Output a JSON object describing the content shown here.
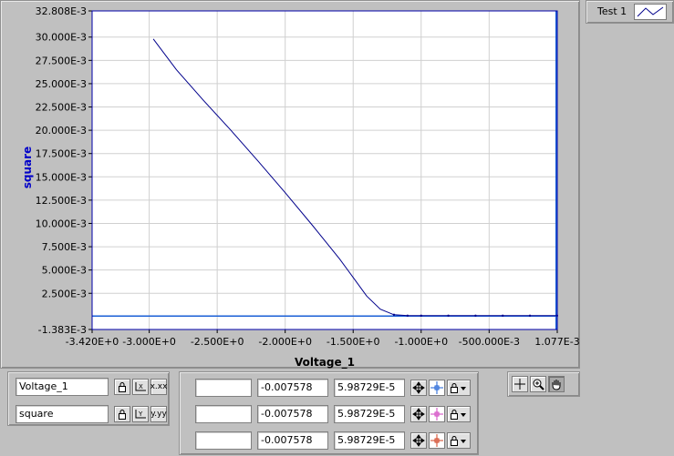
{
  "legend": {
    "label": "Test 1"
  },
  "scales": [
    {
      "name": "Voltage_1",
      "format_label": "x.xx"
    },
    {
      "name": "square",
      "format_label": "y.yy"
    }
  ],
  "cursors": [
    {
      "name": "",
      "x": "-0.007578",
      "y": "5.98729E-5",
      "color": "#1a5fd6"
    },
    {
      "name": "",
      "x": "-0.007578",
      "y": "5.98729E-5",
      "color": "#d040c0"
    },
    {
      "name": "",
      "x": "-0.007578",
      "y": "5.98729E-5",
      "color": "#d04020"
    }
  ],
  "icons": {
    "lock": "lock-icon",
    "autoscale_x": "autoscale-x-icon",
    "autoscale_y": "autoscale-y-icon",
    "move_cursor": "move-cursor-icon",
    "cursor_style": "cursor-style-icon",
    "cursor_tool": "crosshair-cursor-icon",
    "zoom_tool": "zoom-icon",
    "pan_tool": "hand-pan-icon"
  },
  "chart_data": {
    "type": "line",
    "xlabel": "Voltage_1",
    "ylabel": "square",
    "xlim": [
      -3.42,
      0.001077
    ],
    "ylim": [
      -0.001383,
      0.032808
    ],
    "x_ticks": [
      -3.42,
      -3.0,
      -2.5,
      -2.0,
      -1.5,
      -1.0,
      -0.5,
      0.001077
    ],
    "x_tick_labels": [
      "-3.420E+0",
      "-3.000E+0",
      "-2.500E+0",
      "-2.000E+0",
      "-1.500E+0",
      "-1.000E+0",
      "-500.000E-3",
      "1.077E-3"
    ],
    "y_ticks": [
      -0.001383,
      0.0025,
      0.005,
      0.0075,
      0.01,
      0.0125,
      0.015,
      0.0175,
      0.02,
      0.0225,
      0.025,
      0.0275,
      0.03,
      0.032808
    ],
    "y_tick_labels": [
      "-1.383E-3",
      "2.500E-3",
      "5.000E-3",
      "7.500E-3",
      "10.000E-3",
      "12.500E-3",
      "15.000E-3",
      "17.500E-3",
      "20.000E-3",
      "22.500E-3",
      "25.000E-3",
      "27.500E-3",
      "30.000E-3",
      "32.808E-3"
    ],
    "grid": true,
    "legend_position": "top-right",
    "series": [
      {
        "name": "Test 1",
        "color": "#00008b",
        "x": [
          -2.97,
          -2.8,
          -2.6,
          -2.4,
          -2.2,
          -2.0,
          -1.8,
          -1.6,
          -1.5,
          -1.4,
          -1.3,
          -1.2,
          -1.1,
          -1.0,
          -0.8,
          -0.6,
          -0.4,
          -0.2,
          0.0
        ],
        "y": [
          0.0298,
          0.0265,
          0.0232,
          0.02,
          0.0167,
          0.0133,
          0.0098,
          0.0062,
          0.0042,
          0.0022,
          0.0008,
          0.0002,
          0.0001,
          0.0001,
          0.0001,
          0.0001,
          0.0001,
          0.0001,
          0.0001
        ]
      }
    ],
    "cursor_line": {
      "x": -0.007578,
      "y": 5.98729e-05
    }
  }
}
